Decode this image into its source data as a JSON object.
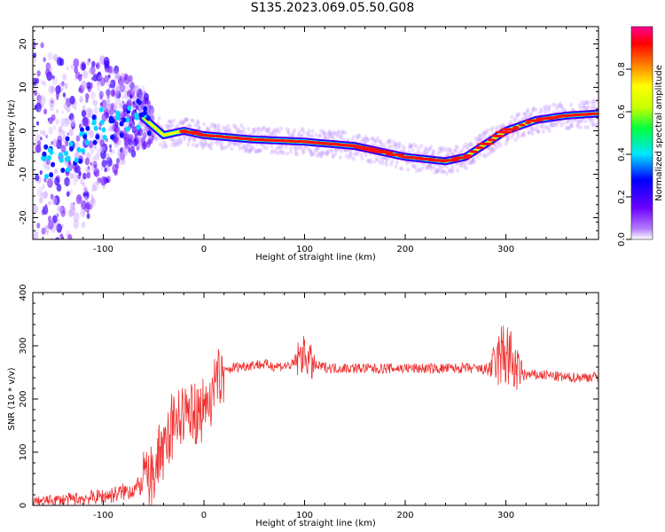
{
  "figure_title": "S135.2023.069.05.50.G08",
  "colors": {
    "snr_line": "#f03030",
    "background": "#ffffff",
    "axis": "#000000"
  },
  "chart_data": [
    {
      "type": "heatmap",
      "title": "S135.2023.069.05.50.G08",
      "xlabel": "Height of straight line (km)",
      "ylabel": "Frequency (Hz)",
      "xlim": [
        -170,
        392
      ],
      "ylim": [
        -25,
        24
      ],
      "xticks": [
        -100,
        0,
        100,
        200,
        300
      ],
      "xtick_labels": [
        "-100",
        "0",
        "100",
        "200",
        "300"
      ],
      "yticks": [
        -20,
        -10,
        0,
        10,
        20
      ],
      "ytick_labels": [
        "-20",
        "-10",
        "0",
        "10",
        "20"
      ],
      "colorbar": {
        "label": "Normalized spectral amplitude",
        "range": [
          0,
          1
        ],
        "ticks": [
          0.0,
          0.2,
          0.4,
          0.6,
          0.8
        ],
        "tick_labels": [
          "0.0",
          "0.2",
          "0.4",
          "0.6",
          "0.8"
        ],
        "colormap": [
          "#ffffff",
          "#b57cff",
          "#6a00ff",
          "#0000ff",
          "#00e5ff",
          "#00ff40",
          "#c8ff00",
          "#ffff00",
          "#ff8000",
          "#ff0000",
          "#ff0090"
        ]
      },
      "ridge": {
        "x": [
          -160,
          -140,
          -120,
          -100,
          -80,
          -60,
          -50,
          -40,
          -20,
          0,
          50,
          100,
          150,
          200,
          220,
          240,
          260,
          280,
          300,
          330,
          360,
          392
        ],
        "y": [
          -8,
          -6,
          -3,
          2,
          3,
          3,
          1,
          -1,
          0,
          -1,
          -2,
          -2.5,
          -3.5,
          -6,
          -6.5,
          -7,
          -6,
          -3,
          0,
          2.5,
          3.5,
          4
        ]
      },
      "grid": false
    },
    {
      "type": "line",
      "xlabel": "Height of straight line (km)",
      "ylabel": "SNR (10 * v/v)",
      "xlim": [
        -170,
        392
      ],
      "ylim": [
        0,
        400
      ],
      "xticks": [
        -100,
        0,
        100,
        200,
        300
      ],
      "xtick_labels": [
        "-100",
        "0",
        "100",
        "200",
        "300"
      ],
      "yticks": [
        0,
        100,
        200,
        300,
        400
      ],
      "ytick_labels": [
        "0",
        "100",
        "200",
        "300",
        "400"
      ],
      "grid": false,
      "series": [
        {
          "x": [
            -170,
            -150,
            -130,
            -110,
            -90,
            -70,
            -60,
            -50,
            -45,
            -40,
            -35,
            -30,
            -25,
            -20,
            -15,
            -10,
            -5,
            0,
            5,
            10,
            15,
            20,
            25,
            30,
            40,
            50,
            60,
            70,
            80,
            90,
            95,
            100,
            105,
            110,
            130,
            150,
            170,
            200,
            230,
            260,
            280,
            290,
            295,
            300,
            305,
            310,
            320,
            340,
            360,
            392
          ],
          "y": [
            8,
            10,
            12,
            15,
            20,
            30,
            40,
            60,
            90,
            120,
            140,
            150,
            160,
            170,
            170,
            175,
            180,
            185,
            200,
            220,
            240,
            250,
            255,
            260,
            262,
            265,
            265,
            262,
            262,
            265,
            280,
            285,
            270,
            262,
            258,
            258,
            257,
            258,
            257,
            258,
            255,
            265,
            280,
            290,
            270,
            255,
            245,
            245,
            240,
            242
          ]
        }
      ]
    }
  ]
}
